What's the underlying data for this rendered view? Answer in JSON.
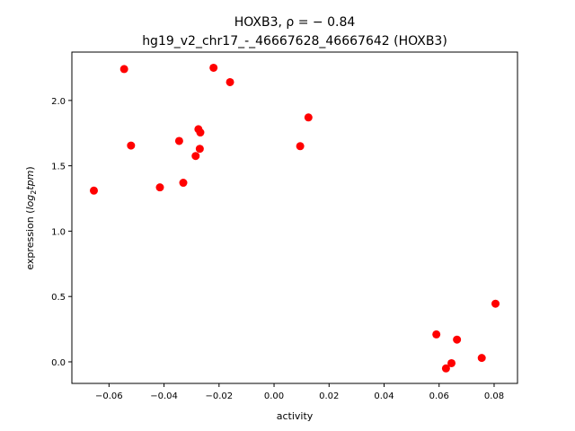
{
  "chart_data": {
    "type": "scatter",
    "title_line1": "HOXB3, ρ = − 0.84",
    "title_line2": "hg19_v2_chr17_-_46667628_46667642 (HOXB3)",
    "xlabel": "activity",
    "ylabel_prefix": "expression (",
    "ylabel_math": "log",
    "ylabel_sub": "2",
    "ylabel_math2": "tpm",
    "ylabel_suffix": ")",
    "xlim": [
      -0.0735,
      0.0885
    ],
    "ylim": [
      -0.165,
      2.37
    ],
    "xticks": [
      {
        "value": -0.06,
        "label": "−0.06"
      },
      {
        "value": -0.04,
        "label": "−0.04"
      },
      {
        "value": -0.02,
        "label": "−0.02"
      },
      {
        "value": 0.0,
        "label": "0.00"
      },
      {
        "value": 0.02,
        "label": "0.02"
      },
      {
        "value": 0.04,
        "label": "0.04"
      },
      {
        "value": 0.06,
        "label": "0.06"
      },
      {
        "value": 0.08,
        "label": "0.08"
      }
    ],
    "yticks": [
      {
        "value": 0.0,
        "label": "0.0"
      },
      {
        "value": 0.5,
        "label": "0.5"
      },
      {
        "value": 1.0,
        "label": "1.0"
      },
      {
        "value": 1.5,
        "label": "1.5"
      },
      {
        "value": 2.0,
        "label": "2.0"
      }
    ],
    "marker_color": "#ff0000",
    "grid": false,
    "points": [
      {
        "x": -0.0655,
        "y": 1.31
      },
      {
        "x": -0.0545,
        "y": 2.24
      },
      {
        "x": -0.052,
        "y": 1.655
      },
      {
        "x": -0.0415,
        "y": 1.335
      },
      {
        "x": -0.0345,
        "y": 1.69
      },
      {
        "x": -0.033,
        "y": 1.37
      },
      {
        "x": -0.0285,
        "y": 1.575
      },
      {
        "x": -0.0275,
        "y": 1.78
      },
      {
        "x": -0.027,
        "y": 1.63
      },
      {
        "x": -0.0268,
        "y": 1.755
      },
      {
        "x": -0.022,
        "y": 2.25
      },
      {
        "x": -0.016,
        "y": 2.14
      },
      {
        "x": 0.0095,
        "y": 1.65
      },
      {
        "x": 0.0125,
        "y": 1.87
      },
      {
        "x": 0.059,
        "y": 0.21
      },
      {
        "x": 0.0625,
        "y": -0.05
      },
      {
        "x": 0.0645,
        "y": -0.01
      },
      {
        "x": 0.0665,
        "y": 0.17
      },
      {
        "x": 0.0755,
        "y": 0.03
      },
      {
        "x": 0.0805,
        "y": 0.445
      }
    ]
  }
}
